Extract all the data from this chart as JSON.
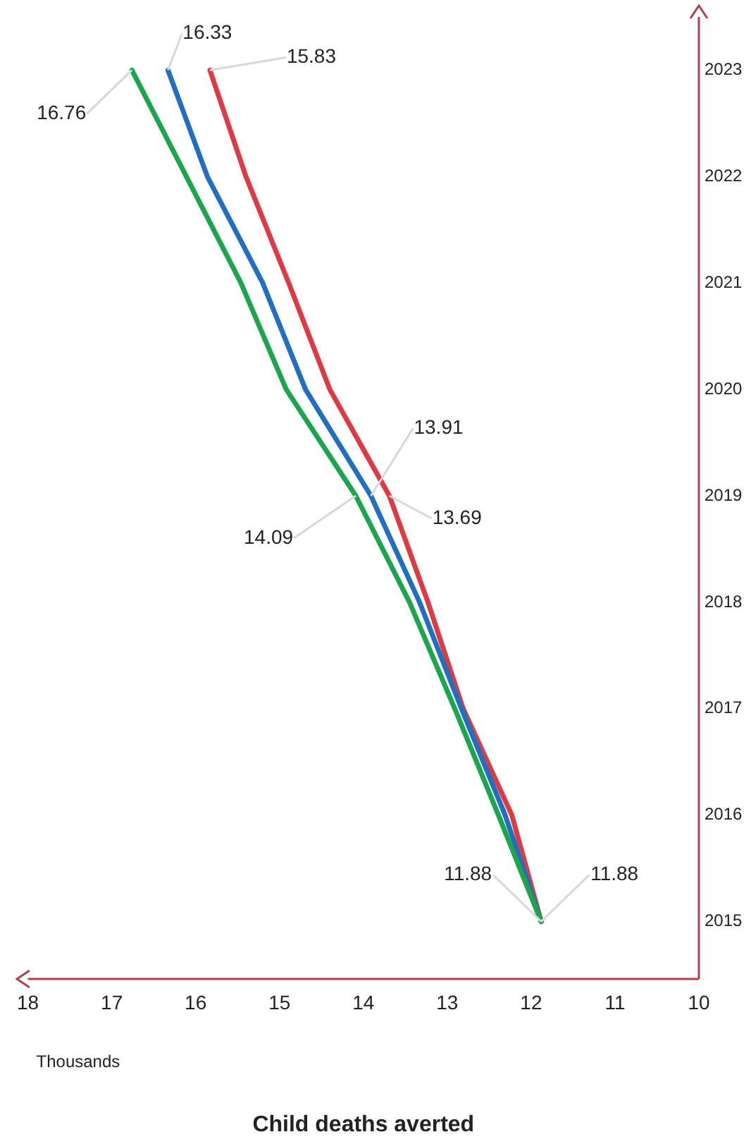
{
  "chart_data": {
    "type": "line",
    "orientation": "horizontal",
    "xlabel": "Child deaths averted",
    "annotations": [
      "Thousands"
    ],
    "categories": [
      "2023",
      "2022",
      "2021",
      "2020",
      "2019",
      "2018",
      "2017",
      "2016",
      "2015"
    ],
    "series": [
      {
        "color": "#1aa64a",
        "values": [
          16.76,
          16.11,
          15.46,
          14.92,
          14.09,
          13.45,
          12.91,
          12.39,
          11.88
        ],
        "value_labels": [
          "16.76",
          null,
          null,
          null,
          "14.09",
          null,
          null,
          null,
          "11.88"
        ]
      },
      {
        "color": "#1f6fc5",
        "values": [
          16.33,
          15.86,
          15.2,
          14.69,
          13.91,
          13.33,
          12.83,
          12.31,
          11.88
        ],
        "value_labels": [
          "16.33",
          null,
          null,
          null,
          "13.91",
          null,
          null,
          null,
          null
        ]
      },
      {
        "color": "#e0393f",
        "values": [
          15.83,
          15.4,
          14.89,
          14.4,
          13.69,
          13.23,
          12.81,
          12.23,
          11.88
        ],
        "value_labels": [
          "15.83",
          null,
          null,
          null,
          "13.69",
          null,
          null,
          null,
          "11.88"
        ]
      }
    ],
    "xlim": [
      18,
      10
    ],
    "xticks": [
      18,
      17,
      16,
      15,
      14,
      13,
      12,
      11,
      10
    ],
    "grid": false,
    "legend": false,
    "marker": "none",
    "line_style": "solid"
  }
}
